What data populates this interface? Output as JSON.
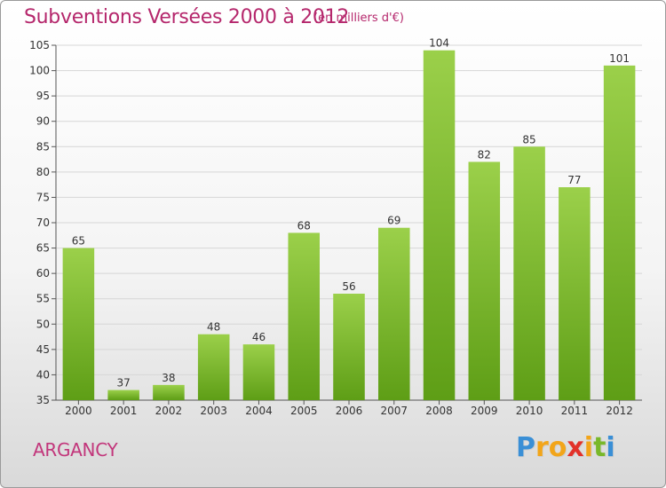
{
  "chart_data": {
    "type": "bar",
    "title": "Subventions Versées 2000 à 2012",
    "subtitle": "(en milliers d'€)",
    "categories": [
      "2000",
      "2001",
      "2002",
      "2003",
      "2004",
      "2005",
      "2006",
      "2007",
      "2008",
      "2009",
      "2010",
      "2011",
      "2012"
    ],
    "values": [
      65,
      37,
      38,
      48,
      46,
      68,
      56,
      69,
      104,
      82,
      85,
      77,
      101
    ],
    "ylim": [
      35,
      105
    ],
    "yticks": [
      35,
      40,
      45,
      50,
      55,
      60,
      65,
      70,
      75,
      80,
      85,
      90,
      95,
      100,
      105
    ],
    "grid": true,
    "data_labels": true,
    "bar_color_top": "#9bd04a",
    "bar_color_bottom": "#5e9e16"
  },
  "commune": "ARGANCY",
  "brand": {
    "letters": [
      "P",
      "r",
      "o",
      "x",
      "i",
      "t",
      "i"
    ],
    "colors": [
      "#3a8fd6",
      "#f2a51a",
      "#f2a51a",
      "#e2312a",
      "#f2a51a",
      "#79b82a",
      "#3a8fd6"
    ]
  }
}
